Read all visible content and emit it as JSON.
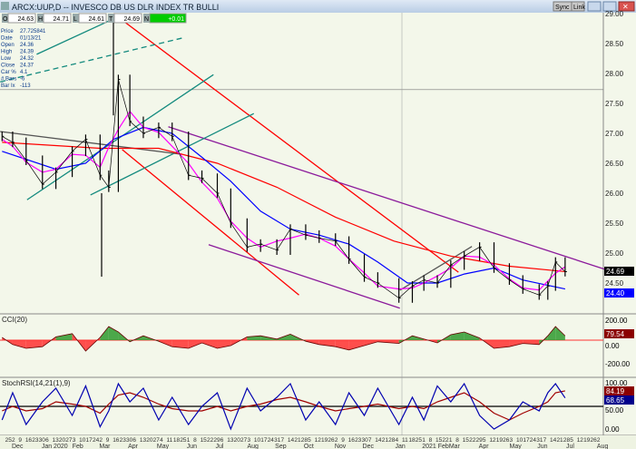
{
  "window": {
    "title": "ARCX:UUP,D -- INVESCO DB US DLR INDEX TR BULLI",
    "buttons": [
      "Sync",
      "Link"
    ]
  },
  "ohlc_strip": [
    {
      "k": "O",
      "v": "24.63"
    },
    {
      "k": "H",
      "v": "24.71"
    },
    {
      "k": "L",
      "v": "24.61"
    },
    {
      "k": "T",
      "v": "24.69"
    },
    {
      "k": "N",
      "v": "+0.01"
    }
  ],
  "info_box": [
    [
      "Price",
      "27.725841"
    ],
    [
      "Date",
      "01/13/21"
    ],
    [
      "Open",
      "24.36"
    ],
    [
      "High",
      "24.39"
    ],
    [
      "Low",
      "24.32"
    ],
    [
      "Close",
      "24.37"
    ],
    [
      "Car %",
      "4.1"
    ],
    [
      "# Bars",
      "-6"
    ],
    [
      "Bar Ix",
      "-113"
    ]
  ],
  "colors": {
    "price": "#000000",
    "ma_long": "#ff0000",
    "ma_mid": "#0000ff",
    "ma_short": "#ff00ff",
    "channel_red": "#ff0000",
    "channel_purple": "#8b1a9b",
    "channel_teal": "#138a7e",
    "cci_pos": "#2e9a2e",
    "cci_neg": "#ff3030",
    "stoch_k": "#0000b0",
    "stoch_d": "#a00000",
    "positive_badge": "#00cc00"
  },
  "chart_data": [
    {
      "type": "line",
      "title": "ARCX:UUP,D",
      "ylim": [
        24.0,
        29.0
      ],
      "yticks": [
        "29.00",
        "28.50",
        "28.00",
        "27.50",
        "27.00",
        "26.50",
        "26.00",
        "25.50",
        "25.00",
        "24.50"
      ],
      "last_labels": [
        {
          "value": "24.69",
          "bg": "#000000"
        },
        {
          "value": "24.40",
          "bg": "#0000ff"
        }
      ],
      "crosshair_price": 27.73,
      "dates": [
        "2019-11-20",
        "2019-12-01",
        "2019-12-15",
        "2020-01-01",
        "2020-01-15",
        "2020-02-01",
        "2020-02-15",
        "2020-03-01",
        "2020-03-10",
        "2020-03-20",
        "2020-04-01",
        "2020-04-15",
        "2020-05-01",
        "2020-05-15",
        "2020-06-01",
        "2020-06-15",
        "2020-07-01",
        "2020-07-15",
        "2020-08-01",
        "2020-08-15",
        "2020-09-01",
        "2020-09-15",
        "2020-10-01",
        "2020-10-15",
        "2020-11-01",
        "2020-11-15",
        "2020-12-01",
        "2020-12-15",
        "2021-01-06",
        "2021-01-20",
        "2021-02-01",
        "2021-02-15",
        "2021-03-01",
        "2021-03-15",
        "2021-03-31",
        "2021-04-15",
        "2021-05-01",
        "2021-05-15",
        "2021-06-01",
        "2021-06-10",
        "2021-06-18",
        "2021-06-28"
      ],
      "price": [
        26.95,
        26.85,
        26.55,
        26.15,
        26.35,
        26.7,
        26.9,
        26.3,
        26.1,
        27.9,
        27.2,
        27.0,
        27.1,
        26.95,
        26.3,
        26.25,
        26.0,
        25.5,
        25.1,
        25.15,
        25.05,
        25.4,
        25.3,
        25.25,
        25.2,
        24.9,
        24.6,
        24.5,
        24.25,
        24.45,
        24.55,
        24.5,
        24.8,
        24.95,
        25.1,
        24.75,
        24.55,
        24.4,
        24.3,
        24.45,
        24.85,
        24.69
      ],
      "ma_long": [
        [
          "2019-11-20",
          26.85
        ],
        [
          "2020-03-01",
          26.75
        ],
        [
          "2020-05-01",
          26.75
        ],
        [
          "2020-07-01",
          26.5
        ],
        [
          "2020-09-01",
          26.1
        ],
        [
          "2020-11-01",
          25.6
        ],
        [
          "2021-01-01",
          25.2
        ],
        [
          "2021-03-01",
          24.95
        ],
        [
          "2021-05-01",
          24.78
        ],
        [
          "2021-06-28",
          24.69
        ]
      ],
      "ma_mid": [
        [
          "2019-11-20",
          26.7
        ],
        [
          "2020-01-15",
          26.4
        ],
        [
          "2020-02-15",
          26.5
        ],
        [
          "2020-03-15",
          26.9
        ],
        [
          "2020-04-15",
          27.1
        ],
        [
          "2020-05-15",
          27.0
        ],
        [
          "2020-06-15",
          26.6
        ],
        [
          "2020-07-15",
          26.2
        ],
        [
          "2020-08-15",
          25.7
        ],
        [
          "2020-09-15",
          25.4
        ],
        [
          "2020-10-15",
          25.3
        ],
        [
          "2020-11-15",
          25.15
        ],
        [
          "2020-12-15",
          24.85
        ],
        [
          "2021-01-15",
          24.5
        ],
        [
          "2021-02-15",
          24.5
        ],
        [
          "2021-03-15",
          24.65
        ],
        [
          "2021-04-15",
          24.75
        ],
        [
          "2021-05-15",
          24.55
        ],
        [
          "2021-06-28",
          24.4
        ]
      ],
      "trendlines": [
        {
          "color": "channel_red",
          "p": [
            [
              "2020-03-15",
              29.0
            ],
            [
              "2021-03-09",
              24.68
            ]
          ]
        },
        {
          "color": "channel_red",
          "p": [
            [
              "2020-03-24",
              26.73
            ],
            [
              "2020-09-24",
              24.3
            ]
          ]
        },
        {
          "color": "channel_purple",
          "p": [
            [
              "2020-05-11",
              27.11
            ],
            [
              "2021-08-12",
              24.71
            ]
          ]
        },
        {
          "color": "channel_purple",
          "p": [
            [
              "2020-06-22",
              25.14
            ],
            [
              "2021-01-07",
              24.08
            ]
          ]
        },
        {
          "color": "channel_teal",
          "p": [
            [
              "2019-12-16",
              25.89
            ],
            [
              "2020-06-27",
              27.98
            ]
          ]
        },
        {
          "color": "channel_teal",
          "p": [
            [
              "2019-12-26",
              28.32
            ],
            [
              "2020-03-20",
              28.95
            ]
          ]
        },
        {
          "color": "channel_teal",
          "dash": true,
          "p": [
            [
              "2019-11-18",
              27.86
            ],
            [
              "2020-05-25",
              28.59
            ]
          ]
        },
        {
          "color": "channel_teal",
          "p": [
            [
              "2020-02-20",
              25.97
            ],
            [
              "2020-08-08",
              27.33
            ]
          ]
        },
        {
          "color": "#555555",
          "p": [
            [
              "2019-11-18",
              27.03
            ],
            [
              "2020-05-25",
              26.65
            ]
          ]
        },
        {
          "color": "#555555",
          "p": [
            [
              "2021-01-07",
              24.38
            ],
            [
              "2021-03-23",
              25.11
            ]
          ]
        }
      ]
    },
    {
      "type": "area",
      "title": "CCI(20)",
      "ylim": [
        -260,
        260
      ],
      "yticks": [
        "200.00",
        "0.00",
        "-200.00"
      ],
      "last_label": "79.54",
      "values": [
        50,
        -80,
        -150,
        -120,
        60,
        120,
        -200,
        50,
        250,
        150,
        -30,
        80,
        -20,
        -120,
        -150,
        -50,
        -150,
        -100,
        60,
        80,
        20,
        110,
        -20,
        -80,
        -120,
        -180,
        -100,
        -30,
        -60,
        80,
        20,
        -50,
        100,
        150,
        40,
        -150,
        -120,
        -60,
        -80,
        80,
        250,
        79.54
      ]
    },
    {
      "type": "line",
      "title": "StochRSI(14,21(1),9)",
      "ylim": [
        0,
        100
      ],
      "yticks": [
        "100.00",
        "50.00",
        "0.00"
      ],
      "last_labels": [
        "84.19",
        "68.65"
      ],
      "k": [
        20,
        80,
        10,
        60,
        90,
        30,
        95,
        5,
        40,
        100,
        60,
        90,
        20,
        70,
        10,
        50,
        80,
        0,
        90,
        40,
        70,
        100,
        20,
        60,
        10,
        80,
        30,
        90,
        10,
        70,
        20,
        95,
        60,
        100,
        30,
        0,
        20,
        60,
        40,
        80,
        100,
        68.65
      ],
      "d": [
        40,
        50,
        40,
        45,
        60,
        55,
        50,
        35,
        55,
        75,
        80,
        70,
        55,
        45,
        40,
        40,
        50,
        40,
        50,
        55,
        65,
        70,
        60,
        50,
        40,
        45,
        50,
        55,
        45,
        50,
        45,
        60,
        70,
        80,
        60,
        35,
        20,
        35,
        50,
        60,
        80,
        84.19
      ]
    }
  ],
  "time_axis": {
    "months": [
      [
        "Dec",
        "2019-12-02"
      ],
      [
        "Jan 2020",
        "2020-01-02"
      ],
      [
        "Feb",
        "2020-02-03"
      ],
      [
        "Mar",
        "2020-03-02"
      ],
      [
        "Apr",
        "2020-04-01"
      ],
      [
        "May",
        "2020-05-01"
      ],
      [
        "Jun",
        "2020-06-01"
      ],
      [
        "Jul",
        "2020-07-01"
      ],
      [
        "Aug",
        "2020-08-03"
      ],
      [
        "Sep",
        "2020-09-01"
      ],
      [
        "Oct",
        "2020-10-01"
      ],
      [
        "Nov",
        "2020-11-02"
      ],
      [
        "Dec",
        "2020-12-01"
      ],
      [
        "Jan",
        "2021-01-04"
      ],
      [
        "2021 Feb",
        "2021-02-01"
      ],
      [
        "Mar",
        "2021-03-01"
      ],
      [
        "Apr",
        "2021-04-01"
      ],
      [
        "May",
        "2021-05-03"
      ],
      [
        "Jun",
        "2021-06-01"
      ],
      [
        "Jul",
        "2021-07-01"
      ],
      [
        "Aug",
        "2021-08-02"
      ]
    ]
  }
}
